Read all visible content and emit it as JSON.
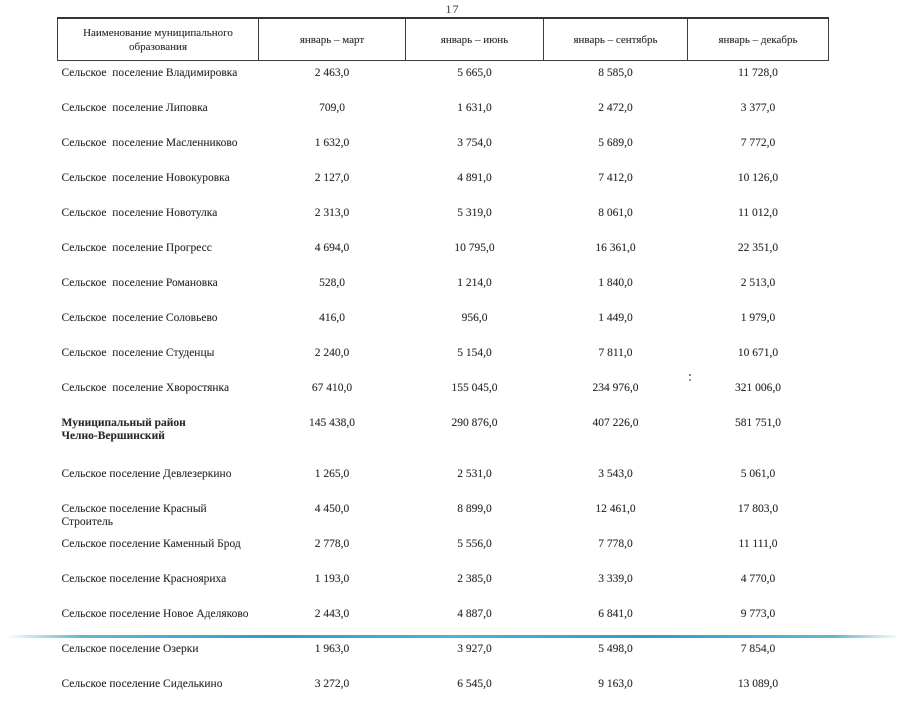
{
  "page": {
    "number": "17"
  },
  "table": {
    "headers": [
      "Наименование муниципального образования",
      "январь – март",
      "январь – июнь",
      "январь – сентябрь",
      "январь – декабрь"
    ],
    "rows": [
      {
        "name": "Сельское  поселение Владимировка",
        "values": [
          "2 463,0",
          "5 665,0",
          "8 585,0",
          "11 728,0"
        ],
        "district": false
      },
      {
        "name": "Сельское  поселение Липовка",
        "values": [
          "709,0",
          "1 631,0",
          "2 472,0",
          "3 377,0"
        ],
        "district": false
      },
      {
        "name": "Сельское  поселение Масленниково",
        "values": [
          "1 632,0",
          "3 754,0",
          "5 689,0",
          "7 772,0"
        ],
        "district": false
      },
      {
        "name": "Сельское  поселение Новокуровка",
        "values": [
          "2 127,0",
          "4 891,0",
          "7 412,0",
          "10 126,0"
        ],
        "district": false
      },
      {
        "name": "Сельское  поселение Новотулка",
        "values": [
          "2 313,0",
          "5 319,0",
          "8 061,0",
          "11 012,0"
        ],
        "district": false
      },
      {
        "name": "Сельское  поселение Прогресс",
        "values": [
          "4 694,0",
          "10 795,0",
          "16 361,0",
          "22 351,0"
        ],
        "district": false
      },
      {
        "name": "Сельское  поселение Романовка",
        "values": [
          "528,0",
          "1 214,0",
          "1 840,0",
          "2 513,0"
        ],
        "district": false
      },
      {
        "name": "Сельское  поселение Соловьево",
        "values": [
          "416,0",
          "956,0",
          "1 449,0",
          "1 979,0"
        ],
        "district": false
      },
      {
        "name": "Сельское  поселение Студенцы",
        "values": [
          "2 240,0",
          "5 154,0",
          "7 811,0",
          "10 671,0"
        ],
        "district": false
      },
      {
        "name": "Сельское  поселение Хворостянка",
        "values": [
          "67 410,0",
          "155 045,0",
          "234 976,0",
          "321 006,0"
        ],
        "district": false
      },
      {
        "name": "Муниципальный район\nЧелно-Вершинский",
        "values": [
          "145 438,0",
          "290 876,0",
          "407 226,0",
          "581 751,0"
        ],
        "district": true
      },
      {
        "name": "Сельское поселение Девлезеркино",
        "values": [
          "1 265,0",
          "2 531,0",
          "3 543,0",
          "5 061,0"
        ],
        "district": false
      },
      {
        "name": "Сельское поселение Красный Строитель",
        "values": [
          "4 450,0",
          "8 899,0",
          "12 461,0",
          "17 803,0"
        ],
        "district": false
      },
      {
        "name": "Сельское поселение Каменный Брод",
        "values": [
          "2 778,0",
          "5 556,0",
          "7 778,0",
          "11 111,0"
        ],
        "district": false
      },
      {
        "name": "Сельское поселение Краснояриха",
        "values": [
          "1 193,0",
          "2 385,0",
          "3 339,0",
          "4 770,0"
        ],
        "district": false
      },
      {
        "name": "Сельское поселение Новое Аделяково",
        "values": [
          "2 443,0",
          "4 887,0",
          "6 841,0",
          "9 773,0"
        ],
        "district": false
      },
      {
        "name": "Сельское поселение Озерки",
        "values": [
          "1 963,0",
          "3 927,0",
          "5 498,0",
          "7 854,0"
        ],
        "district": false
      },
      {
        "name": "Сельское поселение Сиделькино",
        "values": [
          "3 272,0",
          "6 545,0",
          "9 163,0",
          "13 089,0"
        ],
        "district": false
      }
    ]
  },
  "artifacts": {
    "bottom_line_color": "#2e9ec9"
  }
}
